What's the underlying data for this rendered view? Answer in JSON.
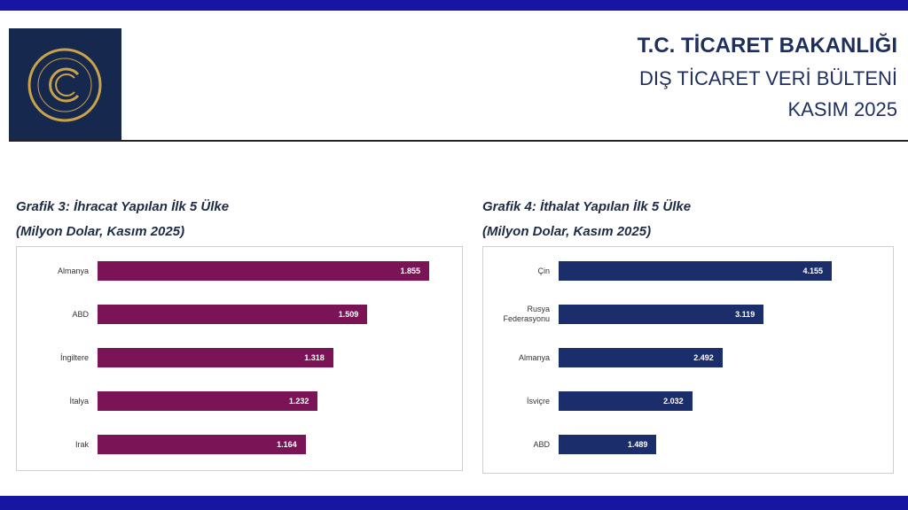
{
  "header": {
    "title": "T.C. TİCARET BAKANLIĞI",
    "subtitle": "DIŞ TİCARET VERİ BÜLTENİ",
    "date": "KASIM 2025"
  },
  "chart_data": [
    {
      "type": "bar",
      "orientation": "horizontal",
      "title": "Grafik 3: İhracat Yapılan İlk 5 Ülke",
      "subtitle": "(Milyon Dolar, Kasım 2025)",
      "categories": [
        "Almanya",
        "ABD",
        "İngiltere",
        "İtalya",
        "Irak"
      ],
      "values": [
        1855,
        1509,
        1318,
        1232,
        1164
      ],
      "value_labels": [
        "1.855",
        "1.509",
        "1.318",
        "1.232",
        "1.164"
      ],
      "color": "#7a1457"
    },
    {
      "type": "bar",
      "orientation": "horizontal",
      "title": "Grafik 4: İthalat Yapılan İlk 5 Ülke",
      "subtitle": "(Milyon Dolar, Kasım 2025)",
      "categories": [
        "Çin",
        "Rusya Federasyonu",
        "Almanya",
        "İsviçre",
        "ABD"
      ],
      "values": [
        4155,
        3119,
        2492,
        2032,
        1489
      ],
      "value_labels": [
        "4.155",
        "3.119",
        "2.492",
        "2.032",
        "1.489"
      ],
      "color": "#1b2d6b"
    }
  ]
}
